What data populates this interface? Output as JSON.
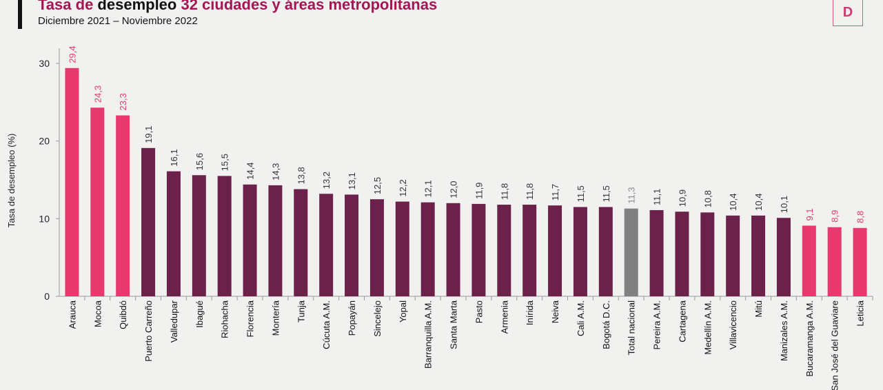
{
  "header": {
    "title_part1": "Tasa de ",
    "title_part2": "desempleo",
    "title_part3": " 32 ciudades y áreas metropolitanas",
    "subtitle": "Diciembre 2021 – Noviembre 2022",
    "logo_text": "D"
  },
  "chart_data": {
    "type": "bar",
    "title": "",
    "xlabel": "",
    "ylabel": "Tasa de desempleo (%)",
    "ylim": [
      0,
      30
    ],
    "yticks": [
      0,
      10,
      20,
      30
    ],
    "grid": false,
    "colors": {
      "high": "#e8396f",
      "mid": "#6b2149",
      "low": "#e8396f",
      "national": "#808080",
      "label_pink": "#e8396f",
      "label_dark": "#333333"
    },
    "categories": [
      "Arauca",
      "Mocoa",
      "Quibdó",
      "Puerto Carreño",
      "Valledupar",
      "Ibagué",
      "Riohacha",
      "Florencia",
      "Montería",
      "Tunja",
      "Cúcuta A.M.",
      "Popayán",
      "Sincelejo",
      "Yopal",
      "Barranquilla A.M.",
      "Santa Marta",
      "Pasto",
      "Armenia",
      "Inírida",
      "Neiva",
      "Cali A.M.",
      "Bogotá D.C.",
      "Total nacional",
      "Pereira A.M.",
      "Cartagena",
      "Medellín A.M.",
      "Villavicencio",
      "Mitú",
      "Manizales A.M.",
      "Bucaramanga A.M.",
      "San José del Guaviare",
      "Leticia"
    ],
    "values": [
      29.4,
      24.3,
      23.3,
      19.1,
      16.1,
      15.6,
      15.5,
      14.4,
      14.3,
      13.8,
      13.2,
      13.1,
      12.5,
      12.2,
      12.1,
      12.0,
      11.9,
      11.8,
      11.8,
      11.7,
      11.5,
      11.5,
      11.3,
      11.1,
      10.9,
      10.8,
      10.4,
      10.4,
      10.1,
      9.1,
      8.9,
      8.8
    ],
    "value_labels": [
      "29,4",
      "24,3",
      "23,3",
      "19,1",
      "16,1",
      "15,6",
      "15,5",
      "14,4",
      "14,3",
      "13,8",
      "13,2",
      "13,1",
      "12,5",
      "12,2",
      "12,1",
      "12,0",
      "11,9",
      "11,8",
      "11,8",
      "11,7",
      "11,5",
      "11,5",
      "11,3",
      "11,1",
      "10,9",
      "10,8",
      "10,4",
      "10,4",
      "10,1",
      "9,1",
      "8,9",
      "8,8"
    ],
    "bar_groups": [
      "high",
      "high",
      "high",
      "mid",
      "mid",
      "mid",
      "mid",
      "mid",
      "mid",
      "mid",
      "mid",
      "mid",
      "mid",
      "mid",
      "mid",
      "mid",
      "mid",
      "mid",
      "mid",
      "mid",
      "mid",
      "mid",
      "national",
      "mid",
      "mid",
      "mid",
      "mid",
      "mid",
      "mid",
      "low",
      "low",
      "low"
    ]
  }
}
